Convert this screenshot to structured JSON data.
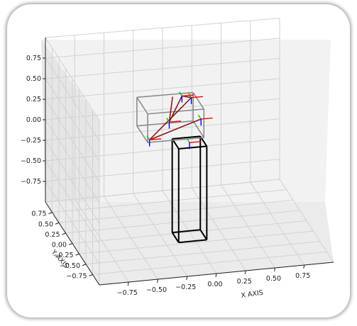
{
  "chart_data": {
    "type": "3d-wireframe",
    "xlabel": "X AXIS",
    "ylabel": "Y AXIS",
    "zlabel": "",
    "x_ticks": [
      "−0.75",
      "−0.50",
      "−0.25",
      "0.00",
      "0.25",
      "0.50",
      "0.75"
    ],
    "y_ticks": [
      "0.75",
      "0.50",
      "0.25",
      "0.00",
      "−0.25",
      "−0.50",
      "−0.75"
    ],
    "z_ticks": [
      "0.75",
      "0.50",
      "0.25",
      "0.00",
      "−0.25",
      "−0.50",
      "−0.75"
    ],
    "xlim": [
      -1,
      1
    ],
    "ylim": [
      -1,
      1
    ],
    "zlim": [
      -1,
      1
    ],
    "grid": true,
    "objects": [
      {
        "shape": "box",
        "color": "#000000",
        "x": [
          -0.12,
          0.12
        ],
        "y": [
          -0.12,
          0.12
        ],
        "z": [
          -1.05,
          0.1
        ]
      },
      {
        "shape": "box",
        "color": "#8c8c8c",
        "x": [
          -0.38,
          0.1
        ],
        "y": [
          -0.1,
          0.3
        ],
        "z": [
          0.2,
          0.55
        ]
      }
    ],
    "colors": {
      "x_axis_marker": "#ff0000",
      "y_axis_marker": "#00cc00",
      "z_axis_marker": "#0000ff",
      "link": "#8b1a1a"
    }
  }
}
